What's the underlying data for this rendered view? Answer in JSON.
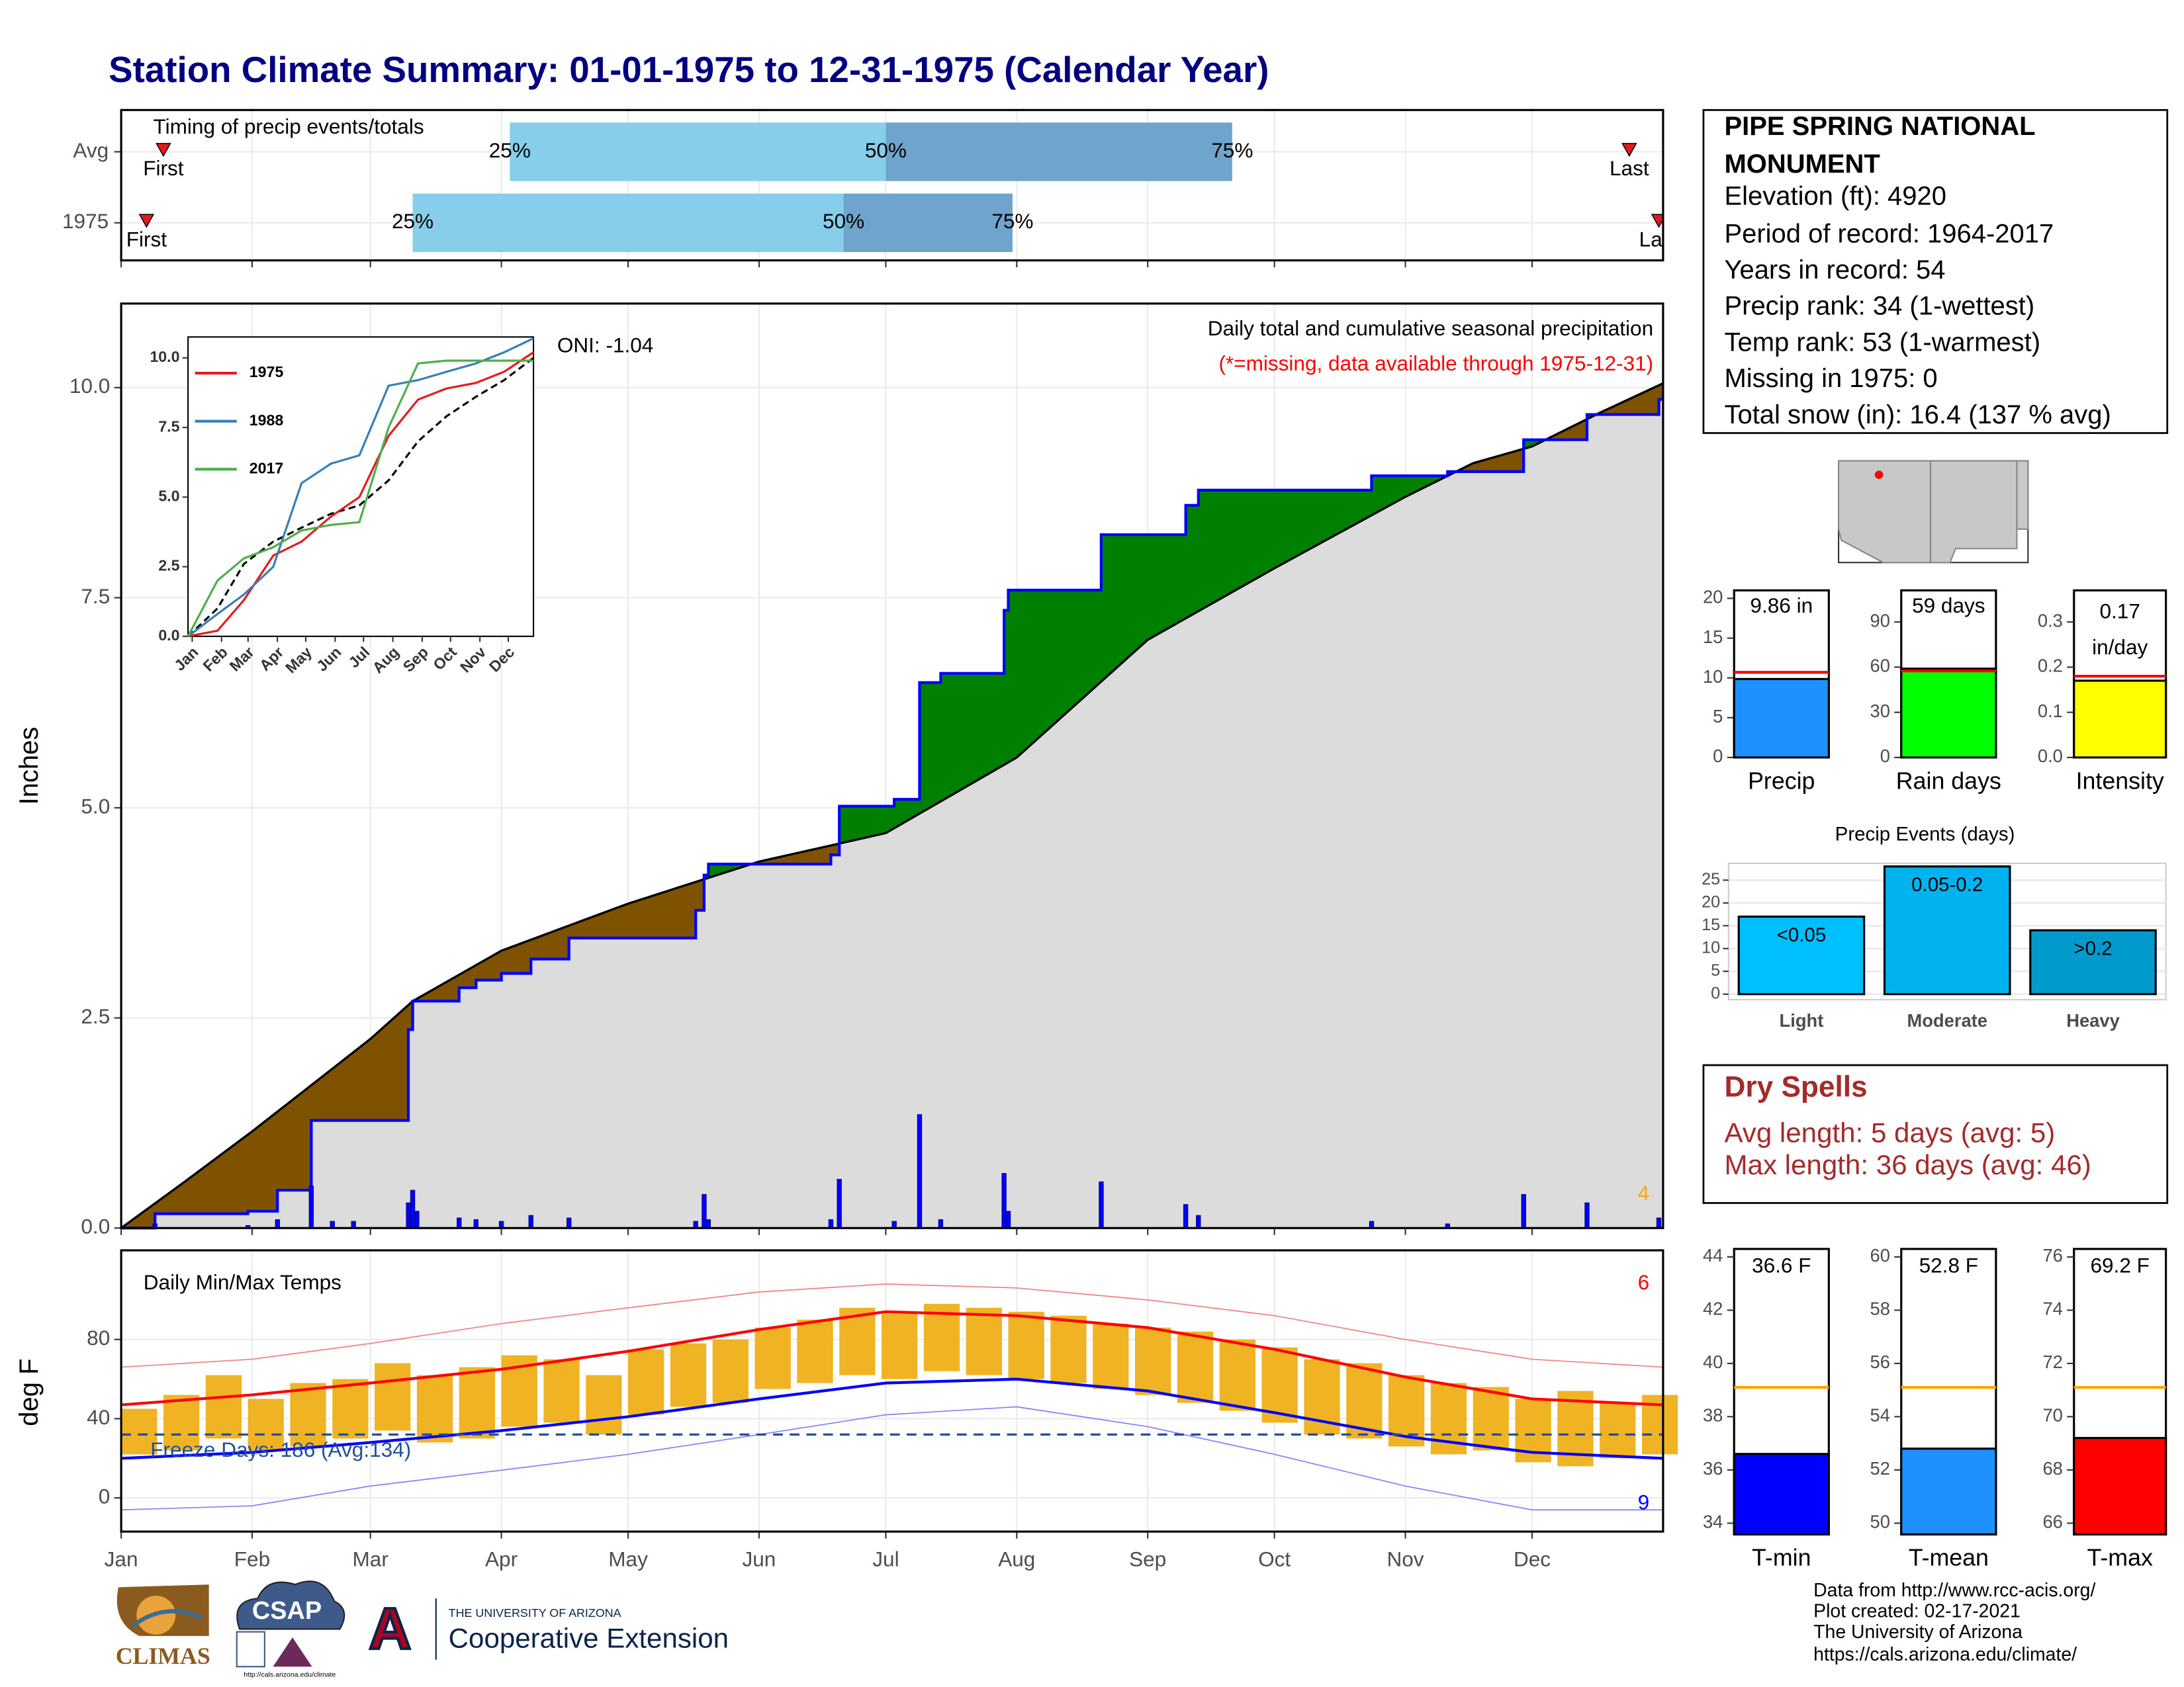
{
  "title": "Station Climate Summary: 01-01-1975 to 12-31-1975 (Calendar Year)",
  "station": {
    "name_lines": [
      "PIPE SPRING NATIONAL",
      "MONUMENT"
    ],
    "lines": [
      "Elevation (ft): 4920",
      "Period of record: 1964-2017",
      "Years in record: 54",
      "Precip rank: 34 (1-wettest)",
      "Temp rank: 53 (1-warmest)",
      "Missing in 1975: 0",
      "Total snow (in): 16.4 (137 % avg)"
    ]
  },
  "dry_spells": {
    "title": "Dry Spells",
    "lines": [
      "Avg length: 5 days (avg: 5)",
      "Max length: 36 days (avg: 46)"
    ],
    "color": "#a52a2a"
  },
  "footer": [
    "Data from http://www.rcc-acis.org/",
    "Plot created: 02-17-2021",
    "The University of Arizona",
    "https://cals.arizona.edu/climate/"
  ],
  "logos": {
    "climas": "CLIMAS",
    "csap": "CSAP",
    "csap_url": "http://cals.arizona.edu/climate",
    "ua_letter": "A",
    "ua_name": "THE UNIVERSITY OF ARIZONA",
    "ua_unit": "Cooperative Extension"
  },
  "chart_data": [
    {
      "type": "timing",
      "title": "Timing of precip events/totals",
      "xlim": [
        0,
        365
      ],
      "categories": [
        "Avg",
        "1975"
      ],
      "marker_labels": [
        "First",
        "25%",
        "50%",
        "75%",
        "Last"
      ],
      "positions": [
        [
          10,
          92,
          181,
          263,
          357
        ],
        [
          6,
          69,
          171,
          211,
          364
        ]
      ],
      "colors": [
        "#87ceeb",
        "#6fa4cc"
      ],
      "marker_color": "#e41a1c"
    },
    {
      "type": "step",
      "ylabel": "Inches",
      "xlim": [
        0,
        365
      ],
      "ylim": [
        0,
        11
      ],
      "yticks": [
        {
          "value": 0,
          "label": "0.0"
        },
        2.5,
        {
          "value": 5,
          "label": "5.0"
        },
        7.5,
        {
          "value": 10,
          "label": "10.0"
        }
      ],
      "annotation": "Daily total and cumulative seasonal precipitation",
      "note": "(*=missing, data available through 1975-12-31)",
      "note_color": "#ff0000",
      "oni": "ONI: -1.04",
      "corner_label": "4",
      "corner_color": "#ffa500",
      "colors": {
        "surplus": "#008000",
        "deficit": "#7f5200",
        "below": "#dcdcdc",
        "observed": "#0000ff",
        "normal": "#000000"
      },
      "normal": {
        "x": [
          0,
          15,
          31,
          45,
          59,
          69,
          90,
          120,
          151,
          181,
          212,
          243,
          273,
          304,
          320,
          334,
          350,
          365
        ],
        "values": [
          0,
          0.55,
          1.15,
          1.7,
          2.25,
          2.7,
          3.3,
          3.86,
          4.36,
          4.7,
          5.6,
          7.0,
          7.85,
          8.7,
          9.1,
          9.3,
          9.7,
          10.05
        ]
      },
      "observed": {
        "x": [
          0,
          8,
          30,
          37,
          45,
          68,
          69,
          80,
          84,
          90,
          97,
          106,
          136,
          138,
          139,
          168,
          170,
          183,
          189,
          194,
          209,
          210,
          232,
          252,
          255,
          296,
          314,
          332,
          347,
          364
        ],
        "values": [
          0,
          0.17,
          0.2,
          0.45,
          1.28,
          2.36,
          2.7,
          2.86,
          2.95,
          3.03,
          3.2,
          3.45,
          3.78,
          4.2,
          4.33,
          4.44,
          5.02,
          5.1,
          6.49,
          6.6,
          7.35,
          7.59,
          8.25,
          8.6,
          8.78,
          8.95,
          9.0,
          9.38,
          9.68,
          9.86
        ]
      },
      "daily": {
        "x": [
          8,
          30,
          37,
          45,
          50,
          55,
          68,
          69,
          70,
          80,
          84,
          90,
          97,
          106,
          136,
          138,
          139,
          168,
          170,
          183,
          189,
          194,
          209,
          210,
          232,
          252,
          255,
          296,
          314,
          332,
          347,
          364
        ],
        "values": [
          0.05,
          0.03,
          0.1,
          0.5,
          0.08,
          0.08,
          0.3,
          0.45,
          0.2,
          0.12,
          0.1,
          0.08,
          0.15,
          0.12,
          0.08,
          0.4,
          0.1,
          0.1,
          0.58,
          0.08,
          1.35,
          0.1,
          0.65,
          0.2,
          0.55,
          0.28,
          0.15,
          0.08,
          0.05,
          0.4,
          0.3,
          0.12
        ]
      }
    },
    {
      "type": "line",
      "xlim": [
        0,
        365
      ],
      "ylim": [
        0,
        10.75
      ],
      "yticks": [
        {
          "value": 0,
          "label": "0.0"
        },
        2.5,
        {
          "value": 5,
          "label": "5.0"
        },
        7.5,
        {
          "value": 10,
          "label": "10.0"
        }
      ],
      "xticks": [
        {
          "value": 0,
          "label": "Jan"
        },
        {
          "value": 31,
          "label": "Feb"
        },
        {
          "value": 59,
          "label": "Mar"
        },
        {
          "value": 90,
          "label": "Apr"
        },
        {
          "value": 120,
          "label": "May"
        },
        {
          "value": 151,
          "label": "Jun"
        },
        {
          "value": 181,
          "label": "Jul"
        },
        {
          "value": 212,
          "label": "Aug"
        },
        {
          "value": 243,
          "label": "Sep"
        },
        {
          "value": 273,
          "label": "Oct"
        },
        {
          "value": 304,
          "label": "Nov"
        },
        {
          "value": 334,
          "label": "Dec"
        }
      ],
      "x": [
        0,
        31,
        59,
        90,
        120,
        151,
        181,
        212,
        243,
        273,
        304,
        334,
        365
      ],
      "series": [
        {
          "name": "1975",
          "color": "#e41a1c",
          "values": [
            0,
            0.2,
            1.3,
            2.9,
            3.4,
            4.3,
            5.0,
            7.2,
            8.5,
            8.9,
            9.1,
            9.5,
            10.2
          ]
        },
        {
          "name": "1988",
          "color": "#377eb8",
          "values": [
            0,
            0.8,
            1.5,
            2.5,
            5.5,
            6.2,
            6.5,
            9.0,
            9.2,
            9.5,
            9.8,
            10.2,
            10.7
          ]
        },
        {
          "name": "2017",
          "color": "#4daf4a",
          "values": [
            0,
            2.0,
            2.8,
            3.2,
            3.8,
            4.0,
            4.1,
            7.5,
            9.8,
            9.9,
            9.9,
            9.9,
            9.9
          ]
        }
      ],
      "normal": [
        0,
        1.0,
        2.6,
        3.4,
        3.9,
        4.4,
        4.7,
        5.6,
        7.0,
        7.9,
        8.6,
        9.2,
        10.0
      ]
    },
    {
      "type": "range",
      "title": "Daily Min/Max Temps",
      "ylabel": "deg F",
      "xlim": [
        0,
        365
      ],
      "ylim": [
        -17,
        125
      ],
      "yticks": [
        0,
        40,
        80
      ],
      "xticks": [
        {
          "value": 0,
          "label": "Jan"
        },
        {
          "value": 31,
          "label": "Feb"
        },
        {
          "value": 59,
          "label": "Mar"
        },
        {
          "value": 90,
          "label": "Apr"
        },
        {
          "value": 120,
          "label": "May"
        },
        {
          "value": 151,
          "label": "Jun"
        },
        {
          "value": 181,
          "label": "Jul"
        },
        {
          "value": 212,
          "label": "Aug"
        },
        {
          "value": 243,
          "label": "Sep"
        },
        {
          "value": 273,
          "label": "Oct"
        },
        {
          "value": 304,
          "label": "Nov"
        },
        {
          "value": 334,
          "label": "Dec"
        }
      ],
      "x": [
        0,
        10,
        20,
        30,
        40,
        50,
        60,
        70,
        80,
        90,
        100,
        110,
        120,
        130,
        140,
        150,
        160,
        170,
        180,
        190,
        200,
        210,
        220,
        230,
        240,
        250,
        260,
        270,
        280,
        290,
        300,
        310,
        320,
        330,
        340,
        350,
        360
      ],
      "max": [
        45,
        52,
        62,
        50,
        58,
        60,
        68,
        62,
        66,
        72,
        70,
        62,
        75,
        78,
        80,
        86,
        90,
        96,
        93,
        98,
        96,
        94,
        92,
        88,
        86,
        84,
        80,
        76,
        70,
        68,
        62,
        58,
        56,
        50,
        54,
        48,
        52
      ],
      "min": [
        22,
        24,
        30,
        24,
        26,
        30,
        34,
        28,
        30,
        36,
        38,
        32,
        42,
        46,
        48,
        55,
        58,
        62,
        60,
        64,
        62,
        60,
        58,
        55,
        52,
        48,
        44,
        38,
        32,
        30,
        26,
        22,
        24,
        18,
        16,
        20,
        22
      ],
      "bar_color": "#f0b323",
      "normals": {
        "x": [
          0,
          31,
          59,
          90,
          120,
          151,
          181,
          212,
          243,
          273,
          304,
          334,
          365
        ],
        "max": [
          47,
          52,
          58,
          65,
          74,
          85,
          94,
          92,
          86,
          75,
          61,
          50,
          47
        ],
        "min": [
          20,
          23,
          28,
          34,
          41,
          50,
          58,
          60,
          54,
          43,
          31,
          23,
          20
        ],
        "record_max": [
          66,
          70,
          78,
          88,
          96,
          104,
          108,
          106,
          100,
          92,
          80,
          70,
          66
        ],
        "record_min": [
          -6,
          -4,
          6,
          14,
          22,
          32,
          42,
          46,
          36,
          22,
          6,
          -6,
          -6
        ]
      },
      "colors": {
        "max": "#ff0000",
        "min": "#0000ff",
        "record_max": "#f08080",
        "record_min": "#8080ff",
        "freeze": "#1f4e9e"
      },
      "freeze": {
        "value": 32,
        "label": "Freeze Days: 186 (Avg:134)"
      },
      "corner_labels": [
        "6",
        "9"
      ]
    },
    {
      "type": "gauge",
      "categories": [
        "Precip"
      ],
      "values": [
        9.86
      ],
      "value_labels": [
        "9.86 in"
      ],
      "average": 10.7,
      "color": "#1e90ff",
      "avg_color": "#ff0000",
      "ylim": [
        0,
        21
      ],
      "yticks": [
        0,
        5,
        10,
        15,
        20
      ]
    },
    {
      "type": "gauge",
      "categories": [
        "Rain days"
      ],
      "values": [
        59
      ],
      "value_labels": [
        "59 days"
      ],
      "average": 57.5,
      "color": "#00ff00",
      "avg_color": "#ff0000",
      "ylim": [
        0,
        111
      ],
      "yticks": [
        0,
        30,
        60,
        90
      ]
    },
    {
      "type": "gauge",
      "categories": [
        "Intensity"
      ],
      "values": [
        0.17
      ],
      "value_labels": [
        "0.17"
      ],
      "unit_label": "in/day",
      "average": 0.18,
      "color": "#ffff00",
      "avg_color": "#ff0000",
      "ylim": [
        0,
        0.37
      ],
      "yticks": [
        {
          "value": 0,
          "label": "0.0"
        },
        0.1,
        0.2,
        0.3
      ]
    },
    {
      "type": "bar",
      "title": "Precip Events (days)",
      "categories": [
        "Light",
        "Moderate",
        "Heavy"
      ],
      "values": [
        17,
        28,
        14
      ],
      "bin_labels": [
        "<0.05",
        "0.05-0.2",
        ">0.2"
      ],
      "colors": [
        "#00bfff",
        "#00b2ee",
        "#009acd"
      ],
      "ylim": [
        0,
        28.7
      ],
      "yticks": [
        0,
        5,
        10,
        15,
        20,
        25
      ],
      "grid": true
    },
    {
      "type": "gauge",
      "categories": [
        "T-min"
      ],
      "values": [
        36.6
      ],
      "value_labels": [
        "36.6 F"
      ],
      "average": 39.1,
      "color": "#0000ff",
      "avg_color": "#ffa500",
      "ylim": [
        33.58,
        44.3
      ],
      "yticks": [
        34,
        36,
        38,
        40,
        42,
        44
      ]
    },
    {
      "type": "gauge",
      "categories": [
        "T-mean"
      ],
      "values": [
        52.8
      ],
      "value_labels": [
        "52.8 F"
      ],
      "average": 55.1,
      "color": "#1e90ff",
      "avg_color": "#ffa500",
      "ylim": [
        49.58,
        60.3
      ],
      "yticks": [
        50,
        52,
        54,
        56,
        58,
        60
      ]
    },
    {
      "type": "gauge",
      "categories": [
        "T-max"
      ],
      "values": [
        69.2
      ],
      "value_labels": [
        "69.2 F"
      ],
      "average": 71.1,
      "color": "#ff0000",
      "avg_color": "#ffa500",
      "ylim": [
        65.58,
        76.3
      ],
      "yticks": [
        66,
        68,
        70,
        72,
        74,
        76
      ]
    }
  ]
}
